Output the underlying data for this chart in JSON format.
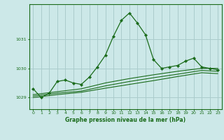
{
  "bg_color": "#cce8e8",
  "grid_color": "#aacccc",
  "line_color": "#1a6b1a",
  "xlabel": "Graphe pression niveau de la mer (hPa)",
  "xlim": [
    -0.5,
    23.5
  ],
  "ylim": [
    1028.6,
    1032.2
  ],
  "yticks": [
    1029,
    1030,
    1031
  ],
  "xticks": [
    0,
    1,
    2,
    3,
    4,
    5,
    6,
    7,
    8,
    9,
    10,
    11,
    12,
    13,
    14,
    15,
    16,
    17,
    18,
    19,
    20,
    21,
    22,
    23
  ],
  "main_series": {
    "x": [
      0,
      1,
      2,
      3,
      4,
      5,
      6,
      7,
      8,
      9,
      10,
      11,
      12,
      13,
      14,
      15,
      16,
      17,
      18,
      19,
      20,
      21,
      22,
      23
    ],
    "y": [
      1029.3,
      1029.0,
      1029.15,
      1029.55,
      1029.6,
      1029.5,
      1029.45,
      1029.7,
      1030.05,
      1030.45,
      1031.1,
      1031.65,
      1031.9,
      1031.55,
      1031.15,
      1030.3,
      1030.0,
      1030.05,
      1030.1,
      1030.25,
      1030.35,
      1030.05,
      1030.0,
      1029.95
    ]
  },
  "extra_lines": [
    {
      "x": [
        0,
        3,
        6,
        9,
        12,
        15,
        18,
        21,
        23
      ],
      "y": [
        1029.1,
        1029.2,
        1029.3,
        1029.5,
        1029.65,
        1029.78,
        1029.9,
        1030.0,
        1030.0
      ]
    },
    {
      "x": [
        0,
        3,
        6,
        9,
        12,
        15,
        18,
        21,
        23
      ],
      "y": [
        1029.05,
        1029.15,
        1029.22,
        1029.4,
        1029.55,
        1029.68,
        1029.8,
        1029.93,
        1029.9
      ]
    },
    {
      "x": [
        0,
        3,
        6,
        9,
        12,
        15,
        18,
        21,
        23
      ],
      "y": [
        1029.0,
        1029.1,
        1029.18,
        1029.32,
        1029.45,
        1029.58,
        1029.72,
        1029.85,
        1029.82
      ]
    }
  ]
}
